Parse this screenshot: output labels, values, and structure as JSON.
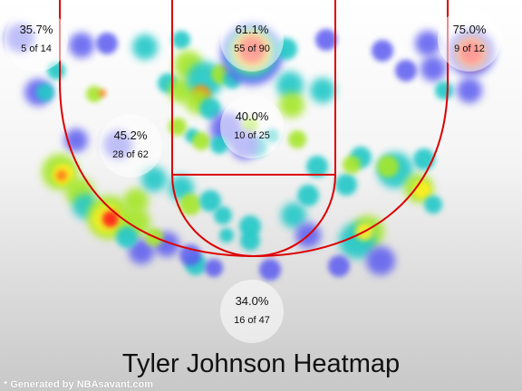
{
  "chart_data": {
    "type": "heatmap",
    "title": "Tyler Johnson Heatmap",
    "zones": [
      {
        "name": "left-corner-three",
        "pct": "35.7%",
        "made": 5,
        "attempts": 14,
        "frac": "5 of 14"
      },
      {
        "name": "restricted-area",
        "pct": "61.1%",
        "made": 55,
        "attempts": 90,
        "frac": "55 of 90"
      },
      {
        "name": "right-corner-three",
        "pct": "75.0%",
        "made": 9,
        "attempts": 12,
        "frac": "9 of 12"
      },
      {
        "name": "paint-non-ra",
        "pct": "40.0%",
        "made": 10,
        "attempts": 25,
        "frac": "10 of 25"
      },
      {
        "name": "mid-range",
        "pct": "45.2%",
        "made": 28,
        "attempts": 62,
        "frac": "28 of 62"
      },
      {
        "name": "above-break-three",
        "pct": "34.0%",
        "made": 16,
        "attempts": 47,
        "frac": "16 of 47"
      }
    ],
    "colors": {
      "court_line": "#dd0000",
      "cold": "#5c5cf0",
      "cool": "#22c8c8",
      "warm": "#a6e62a",
      "hot": "#ffee22",
      "very_hot": "#ff7a1a",
      "hottest": "#ff1f1f"
    }
  },
  "footer_text": "* Generated by NBAsavant.com"
}
